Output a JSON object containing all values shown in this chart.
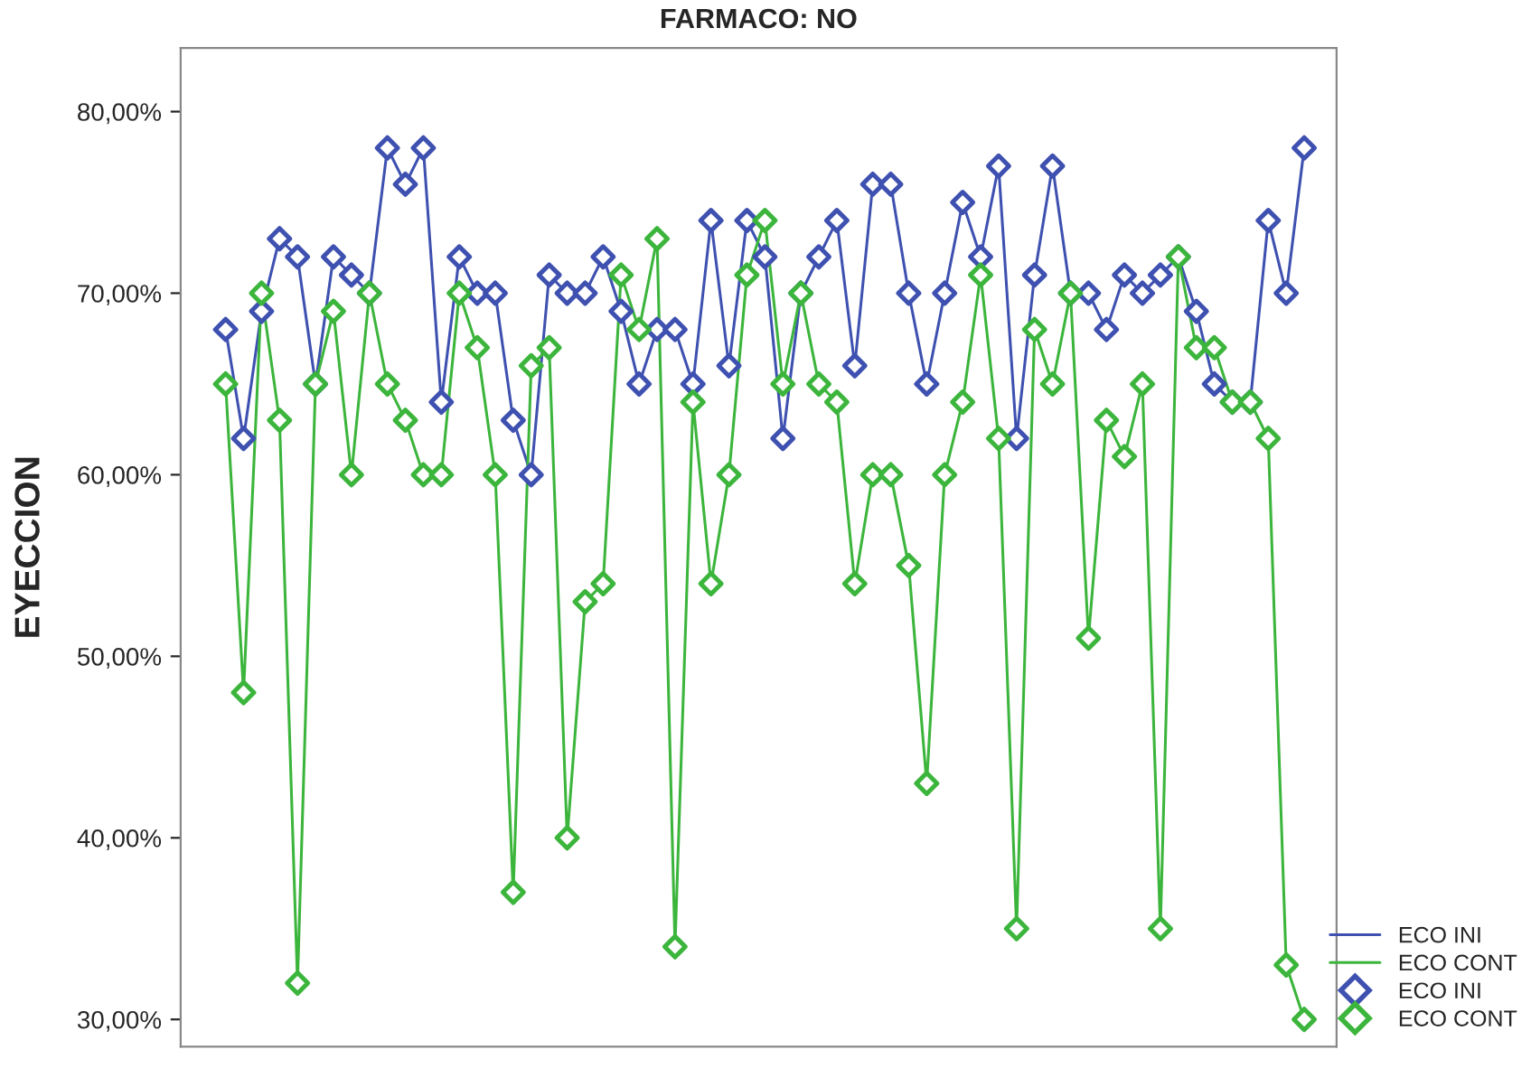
{
  "chart_data": {
    "type": "line",
    "title": "FARMACO: NO",
    "ylabel": "EYECCION",
    "categories": [
      null,
      null,
      null,
      null,
      null,
      null,
      null,
      null,
      null,
      null,
      null,
      null,
      null,
      null,
      null,
      null,
      null,
      null,
      null,
      null,
      null,
      null,
      null,
      null,
      null,
      null,
      null,
      null,
      null,
      null,
      null,
      null,
      null,
      null,
      null,
      null,
      null,
      null,
      null,
      null,
      null,
      null,
      null,
      null,
      null,
      null,
      null,
      null,
      null,
      null,
      null,
      null,
      null,
      null,
      null,
      null,
      null,
      null,
      null,
      null,
      null
    ],
    "series": [
      {
        "name": "ECO INI",
        "color": "#3f51b0",
        "values": [
          68,
          62,
          69,
          73,
          72,
          65,
          72,
          71,
          70,
          78,
          76,
          78,
          64,
          72,
          70,
          70,
          63,
          60,
          71,
          70,
          70,
          72,
          69,
          65,
          68,
          68,
          65,
          74,
          66,
          74,
          72,
          62,
          70,
          72,
          74,
          66,
          76,
          76,
          70,
          65,
          70,
          75,
          72,
          77,
          62,
          71,
          77,
          70,
          70,
          68,
          71,
          70,
          71,
          72,
          69,
          65,
          64,
          64,
          74,
          70,
          78
        ]
      },
      {
        "name": "ECO CONT",
        "color": "#3cb53c",
        "values": [
          65,
          48,
          70,
          63,
          32,
          65,
          69,
          60,
          70,
          65,
          63,
          60,
          60,
          70,
          67,
          60,
          37,
          66,
          67,
          40,
          53,
          54,
          71,
          68,
          73,
          34,
          64,
          54,
          60,
          71,
          74,
          65,
          70,
          65,
          64,
          54,
          60,
          60,
          55,
          43,
          60,
          64,
          71,
          62,
          35,
          68,
          65,
          70,
          51,
          63,
          61,
          65,
          35,
          72,
          67,
          67,
          64,
          64,
          62,
          33,
          30
        ]
      }
    ],
    "ylim": [
      28.5,
      83.5
    ],
    "yticks": [
      {
        "value": 30,
        "label": "30,00%"
      },
      {
        "value": 40,
        "label": "40,00%"
      },
      {
        "value": 50,
        "label": "50,00%"
      },
      {
        "value": 60,
        "label": "60,00%"
      },
      {
        "value": 70,
        "label": "70,00%"
      },
      {
        "value": 80,
        "label": "80,00%"
      }
    ],
    "tick_labels": "y",
    "grid": false,
    "legend": "bottom right",
    "marker": "diamond",
    "line_style": "solid"
  }
}
